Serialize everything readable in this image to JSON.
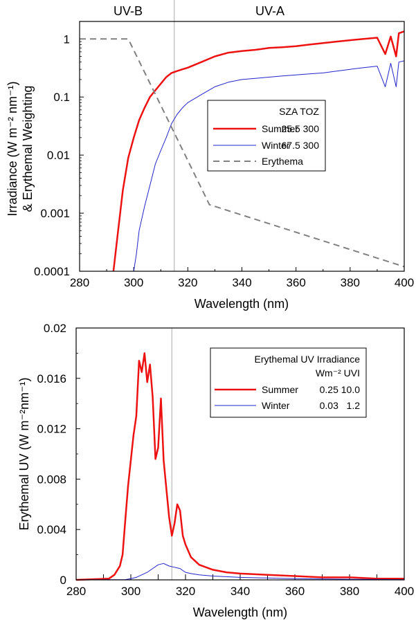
{
  "colors": {
    "summer": "#ee1111",
    "winter": "#2222cc",
    "erythema": "#808080",
    "divider": "#aaaaaa"
  },
  "chart_data": [
    {
      "type": "line",
      "yscale": "log",
      "xlabel": "Wavelength (nm)",
      "ylabel_line1": "Irradiance (W m⁻² nm⁻¹)",
      "ylabel_line2": "& Erythemal Weighting",
      "xlim": [
        280,
        400
      ],
      "ylim": [
        0.0001,
        2
      ],
      "xticks": [
        280,
        300,
        320,
        340,
        360,
        380,
        400
      ],
      "xtick_labels": [
        "280",
        "300",
        "320",
        "340",
        "360",
        "380",
        "400"
      ],
      "yticks": [
        1,
        0.1,
        0.01,
        0.001,
        0.0001
      ],
      "ytick_labels": [
        "1",
        "0.1",
        "0.01",
        "0.001",
        "0.0001"
      ],
      "band_labels": [
        "UV-B",
        "UV-A"
      ],
      "divider_x": 315,
      "legend": {
        "header": "SZA TOZ",
        "entries": [
          {
            "name": "Summer",
            "params": "25.5 300"
          },
          {
            "name": "Winter",
            "params": "67.5 300"
          },
          {
            "name": "Erythema",
            "params": ""
          }
        ]
      },
      "series": [
        {
          "name": "Summer",
          "x": [
            292.5,
            294,
            296,
            298,
            300,
            302,
            304,
            306,
            308,
            310,
            312,
            314,
            316,
            318,
            320,
            325,
            330,
            335,
            340,
            345,
            350,
            355,
            360,
            365,
            370,
            375,
            380,
            385,
            390,
            393,
            395,
            397,
            398,
            400
          ],
          "y": [
            0.0001,
            0.0004,
            0.0025,
            0.009,
            0.02,
            0.04,
            0.065,
            0.1,
            0.13,
            0.17,
            0.22,
            0.26,
            0.28,
            0.3,
            0.32,
            0.4,
            0.5,
            0.58,
            0.62,
            0.65,
            0.7,
            0.72,
            0.75,
            0.8,
            0.85,
            0.9,
            0.95,
            1.0,
            1.05,
            0.55,
            1.1,
            0.5,
            1.25,
            1.35
          ]
        },
        {
          "name": "Winter",
          "x": [
            300,
            301,
            302,
            304,
            306,
            308,
            310,
            312,
            314,
            316,
            318,
            320,
            325,
            330,
            335,
            340,
            345,
            350,
            355,
            360,
            365,
            370,
            375,
            380,
            385,
            390,
            393,
            395,
            397,
            398,
            400
          ],
          "y": [
            0.0001,
            0.0002,
            0.0005,
            0.0013,
            0.003,
            0.007,
            0.012,
            0.02,
            0.035,
            0.05,
            0.065,
            0.08,
            0.11,
            0.15,
            0.18,
            0.2,
            0.21,
            0.22,
            0.23,
            0.24,
            0.25,
            0.26,
            0.28,
            0.3,
            0.32,
            0.34,
            0.15,
            0.38,
            0.15,
            0.4,
            0.42
          ]
        },
        {
          "name": "Erythema",
          "x": [
            280,
            298,
            328,
            400
          ],
          "y": [
            1,
            1,
            0.0014,
            0.00012
          ]
        }
      ]
    },
    {
      "type": "line",
      "xlabel": "Wavelength (nm)",
      "ylabel": "Erythemal UV (W m⁻²nm⁻¹)",
      "xlim": [
        280,
        400
      ],
      "ylim": [
        0,
        0.02
      ],
      "xticks": [
        280,
        300,
        320,
        340,
        360,
        380,
        400
      ],
      "xtick_labels": [
        "280",
        "300",
        "320",
        "340",
        "360",
        "380",
        "400"
      ],
      "yticks": [
        0.02,
        0.016,
        0.012,
        0.008,
        0.004,
        0
      ],
      "ytick_labels": [
        "0.02",
        "0.016",
        "0.012",
        "0.008",
        "0.004",
        "0"
      ],
      "divider_x": 315,
      "legend": {
        "header1": "Erythemal UV Irradiance",
        "header2": "Wm⁻² UVI",
        "entries": [
          {
            "name": "Summer",
            "params": "0.25 10.0"
          },
          {
            "name": "Winter",
            "params": "0.03   1.2"
          }
        ]
      },
      "series": [
        {
          "name": "Summer",
          "x": [
            280,
            292,
            294,
            296,
            297,
            298,
            299,
            300,
            301,
            302,
            303,
            304,
            305,
            306,
            307,
            308,
            309,
            310,
            311,
            312,
            313,
            314,
            315,
            316,
            317,
            318,
            319,
            320,
            322,
            325,
            330,
            335,
            340,
            350,
            360,
            370,
            380,
            390,
            400
          ],
          "y": [
            0,
            0.0001,
            0.0004,
            0.0011,
            0.002,
            0.0048,
            0.0075,
            0.0095,
            0.0115,
            0.013,
            0.0174,
            0.0165,
            0.018,
            0.0157,
            0.0171,
            0.0145,
            0.0096,
            0.0105,
            0.0144,
            0.0095,
            0.0072,
            0.005,
            0.0035,
            0.0045,
            0.006,
            0.0055,
            0.0035,
            0.0028,
            0.0018,
            0.0012,
            0.0008,
            0.0006,
            0.0005,
            0.0004,
            0.0003,
            0.0002,
            0.0002,
            0.0001,
            0.0001
          ]
        },
        {
          "name": "Winter",
          "x": [
            280,
            298,
            300,
            302,
            304,
            306,
            308,
            310,
            312,
            314,
            316,
            318,
            320,
            322,
            325,
            330,
            340,
            350,
            360,
            380,
            400
          ],
          "y": [
            0,
            2e-05,
            0.0001,
            0.0002,
            0.0004,
            0.0006,
            0.0009,
            0.0012,
            0.0013,
            0.0011,
            0.001,
            0.0009,
            0.0006,
            0.0005,
            0.0004,
            0.0003,
            0.0002,
            0.00015,
            0.0001,
            5e-05,
            2e-05
          ]
        }
      ]
    }
  ]
}
